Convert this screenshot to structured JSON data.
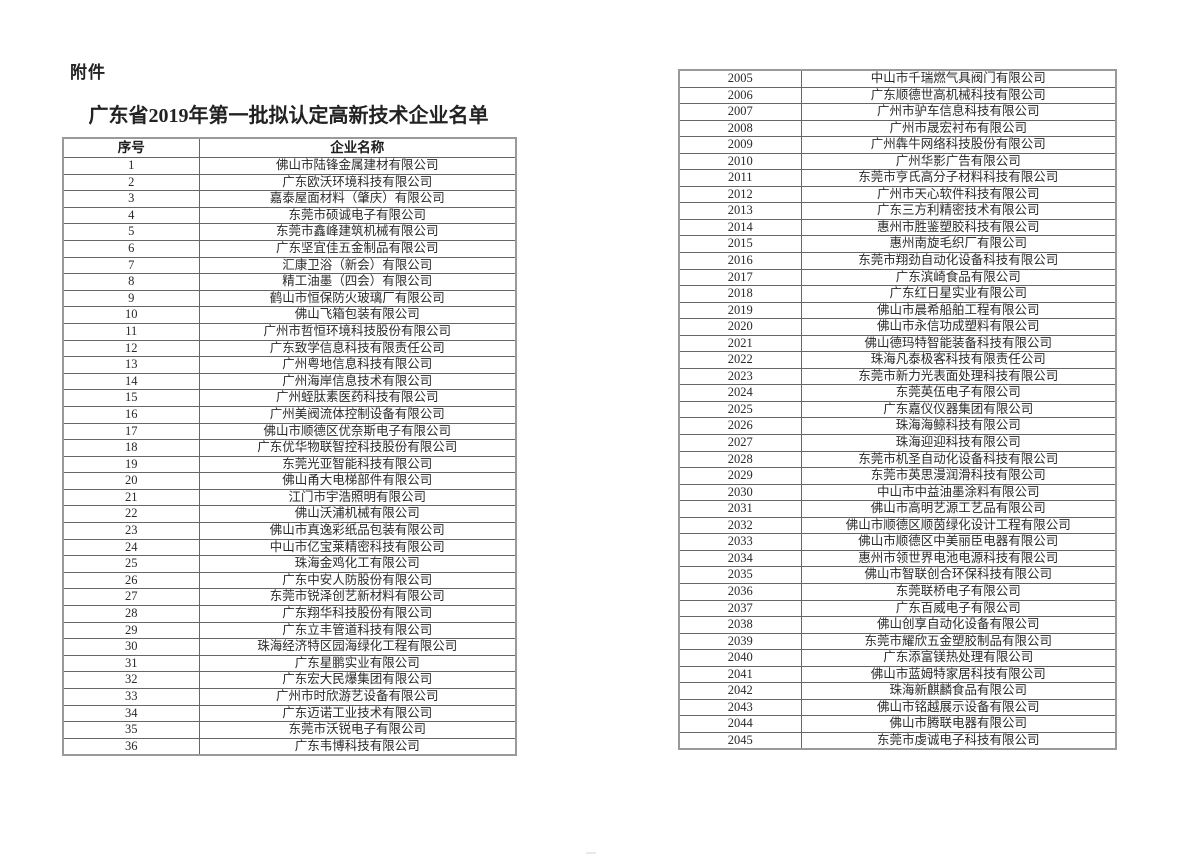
{
  "page": {
    "attachment_label": "附件",
    "title": "广东省2019年第一批拟认定高新技术企业名单"
  },
  "left_table": {
    "headers": {
      "no": "序号",
      "name": "企业名称"
    },
    "rows": [
      {
        "no": "1",
        "name": "佛山市陆锋金属建材有限公司"
      },
      {
        "no": "2",
        "name": "广东欧沃环境科技有限公司"
      },
      {
        "no": "3",
        "name": "嘉泰屋面材料（肇庆）有限公司"
      },
      {
        "no": "4",
        "name": "东莞市硕诚电子有限公司"
      },
      {
        "no": "5",
        "name": "东莞市鑫峰建筑机械有限公司"
      },
      {
        "no": "6",
        "name": "广东坚宜佳五金制品有限公司"
      },
      {
        "no": "7",
        "name": "汇康卫浴（新会）有限公司"
      },
      {
        "no": "8",
        "name": "精工油墨（四会）有限公司"
      },
      {
        "no": "9",
        "name": "鹤山市恒保防火玻璃厂有限公司"
      },
      {
        "no": "10",
        "name": "佛山飞箱包装有限公司"
      },
      {
        "no": "11",
        "name": "广州市哲恒环境科技股份有限公司"
      },
      {
        "no": "12",
        "name": "广东致学信息科技有限责任公司"
      },
      {
        "no": "13",
        "name": "广州粤地信息科技有限公司"
      },
      {
        "no": "14",
        "name": "广州海岸信息技术有限公司"
      },
      {
        "no": "15",
        "name": "广州蛭肽素医药科技有限公司"
      },
      {
        "no": "16",
        "name": "广州美阀流体控制设备有限公司"
      },
      {
        "no": "17",
        "name": "佛山市顺德区优奈斯电子有限公司"
      },
      {
        "no": "18",
        "name": "广东优华物联智控科技股份有限公司"
      },
      {
        "no": "19",
        "name": "东莞光亚智能科技有限公司"
      },
      {
        "no": "20",
        "name": "佛山甬大电梯部件有限公司"
      },
      {
        "no": "21",
        "name": "江门市宇浩照明有限公司"
      },
      {
        "no": "22",
        "name": "佛山沃浦机械有限公司"
      },
      {
        "no": "23",
        "name": "佛山市真逸彩纸品包装有限公司"
      },
      {
        "no": "24",
        "name": "中山市亿宝莱精密科技有限公司"
      },
      {
        "no": "25",
        "name": "珠海金鸡化工有限公司"
      },
      {
        "no": "26",
        "name": "广东中安人防股份有限公司"
      },
      {
        "no": "27",
        "name": "东莞市锐泽创艺新材料有限公司"
      },
      {
        "no": "28",
        "name": "广东翔华科技股份有限公司"
      },
      {
        "no": "29",
        "name": "广东立丰管道科技有限公司"
      },
      {
        "no": "30",
        "name": "珠海经济特区园海绿化工程有限公司"
      },
      {
        "no": "31",
        "name": "广东星鹏实业有限公司"
      },
      {
        "no": "32",
        "name": "广东宏大民爆集团有限公司"
      },
      {
        "no": "33",
        "name": "广州市时欣游艺设备有限公司"
      },
      {
        "no": "34",
        "name": "广东迈诺工业技术有限公司"
      },
      {
        "no": "35",
        "name": "东莞市沃锐电子有限公司"
      },
      {
        "no": "36",
        "name": "广东韦博科技有限公司"
      }
    ]
  },
  "right_table": {
    "rows": [
      {
        "no": "2005",
        "name": "中山市千瑞燃气具阀门有限公司"
      },
      {
        "no": "2006",
        "name": "广东顺德世高机械科技有限公司"
      },
      {
        "no": "2007",
        "name": "广州市驴车信息科技有限公司"
      },
      {
        "no": "2008",
        "name": "广州市晟宏衬布有限公司"
      },
      {
        "no": "2009",
        "name": "广州犇牛网络科技股份有限公司"
      },
      {
        "no": "2010",
        "name": "广州华影广告有限公司"
      },
      {
        "no": "2011",
        "name": "东莞市亨氏高分子材料科技有限公司"
      },
      {
        "no": "2012",
        "name": "广州市天心软件科技有限公司"
      },
      {
        "no": "2013",
        "name": "广东三方利精密技术有限公司"
      },
      {
        "no": "2014",
        "name": "惠州市胜鉴塑胶科技有限公司"
      },
      {
        "no": "2015",
        "name": "惠州南旋毛织厂有限公司"
      },
      {
        "no": "2016",
        "name": "东莞市翔劲自动化设备科技有限公司"
      },
      {
        "no": "2017",
        "name": "广东滨崎食品有限公司"
      },
      {
        "no": "2018",
        "name": "广东红日星实业有限公司"
      },
      {
        "no": "2019",
        "name": "佛山市晨希船舶工程有限公司"
      },
      {
        "no": "2020",
        "name": "佛山市永信功成塑料有限公司"
      },
      {
        "no": "2021",
        "name": "佛山德玛特智能装备科技有限公司"
      },
      {
        "no": "2022",
        "name": "珠海凡泰极客科技有限责任公司"
      },
      {
        "no": "2023",
        "name": "东莞市新力光表面处理科技有限公司"
      },
      {
        "no": "2024",
        "name": "东莞英伍电子有限公司"
      },
      {
        "no": "2025",
        "name": "广东嘉仪仪器集团有限公司"
      },
      {
        "no": "2026",
        "name": "珠海海鲸科技有限公司"
      },
      {
        "no": "2027",
        "name": "珠海迎迎科技有限公司"
      },
      {
        "no": "2028",
        "name": "东莞市机圣自动化设备科技有限公司"
      },
      {
        "no": "2029",
        "name": "东莞市英思漫润滑科技有限公司"
      },
      {
        "no": "2030",
        "name": "中山市中益油墨涂料有限公司"
      },
      {
        "no": "2031",
        "name": "佛山市高明艺源工艺品有限公司"
      },
      {
        "no": "2032",
        "name": "佛山市顺德区顺茵绿化设计工程有限公司"
      },
      {
        "no": "2033",
        "name": "佛山市顺德区中美丽臣电器有限公司"
      },
      {
        "no": "2034",
        "name": "惠州市领世界电池电源科技有限公司"
      },
      {
        "no": "2035",
        "name": "佛山市智联创合环保科技有限公司"
      },
      {
        "no": "2036",
        "name": "东莞联桥电子有限公司"
      },
      {
        "no": "2037",
        "name": "广东百威电子有限公司"
      },
      {
        "no": "2038",
        "name": "佛山创享自动化设备有限公司"
      },
      {
        "no": "2039",
        "name": "东莞市耀欣五金塑胶制品有限公司"
      },
      {
        "no": "2040",
        "name": "广东添富镁热处理有限公司"
      },
      {
        "no": "2041",
        "name": "佛山市蓝姆特家居科技有限公司"
      },
      {
        "no": "2042",
        "name": "珠海新麒麟食品有限公司"
      },
      {
        "no": "2043",
        "name": "佛山市铭越展示设备有限公司"
      },
      {
        "no": "2044",
        "name": "佛山市腾联电器有限公司"
      },
      {
        "no": "2045",
        "name": "东莞市虔诚电子科技有限公司"
      }
    ]
  }
}
